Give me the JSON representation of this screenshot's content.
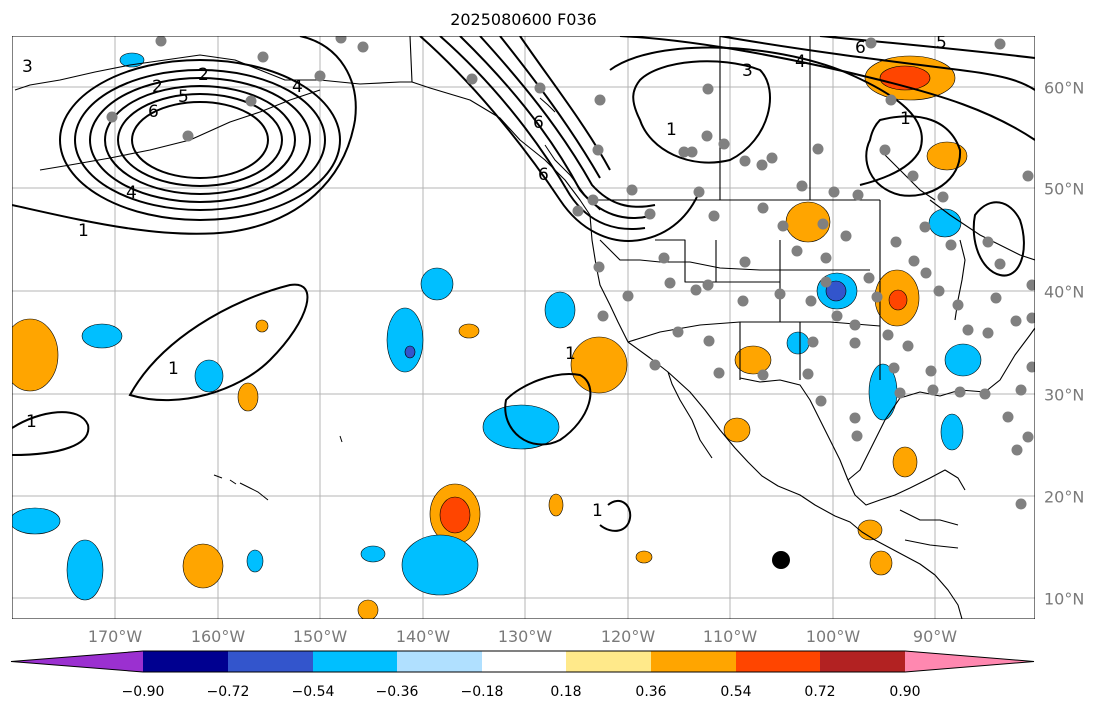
{
  "title": "2025080600 F036",
  "longitude_labels": [
    "170°W",
    "160°W",
    "150°W",
    "140°W",
    "130°W",
    "120°W",
    "110°W",
    "100°W",
    "90°W"
  ],
  "latitude_labels": [
    "60°N",
    "50°N",
    "40°N",
    "30°N",
    "20°N",
    "10°N"
  ],
  "colorbar": {
    "tick_labels": [
      "−0.90",
      "−0.72",
      "−0.54",
      "−0.36",
      "−0.18",
      "0.18",
      "0.36",
      "0.54",
      "0.72",
      "0.90"
    ],
    "colors": [
      "#9b30d0",
      "#000090",
      "#3355cc",
      "#00bfff",
      "#b0e0ff",
      "#ffffff",
      "#ffe98a",
      "#ffa500",
      "#ff4500",
      "#b22222",
      "#ff88b0"
    ]
  },
  "contour_labels": [
    {
      "text": "3"
    },
    {
      "text": "2"
    },
    {
      "text": "4"
    },
    {
      "text": "6"
    },
    {
      "text": "5"
    },
    {
      "text": "2"
    },
    {
      "text": "4"
    },
    {
      "text": "1"
    },
    {
      "text": "6"
    },
    {
      "text": "3"
    },
    {
      "text": "4"
    },
    {
      "text": "6"
    },
    {
      "text": "5"
    },
    {
      "text": "1"
    },
    {
      "text": "1"
    },
    {
      "text": "1"
    },
    {
      "text": "1"
    },
    {
      "text": "1"
    },
    {
      "text": "1"
    },
    {
      "text": "6"
    }
  ],
  "colors": {
    "grid": "#b4b4b4",
    "coast": "#000000",
    "station": "#808080",
    "axis_label": "#7a7a7a"
  }
}
